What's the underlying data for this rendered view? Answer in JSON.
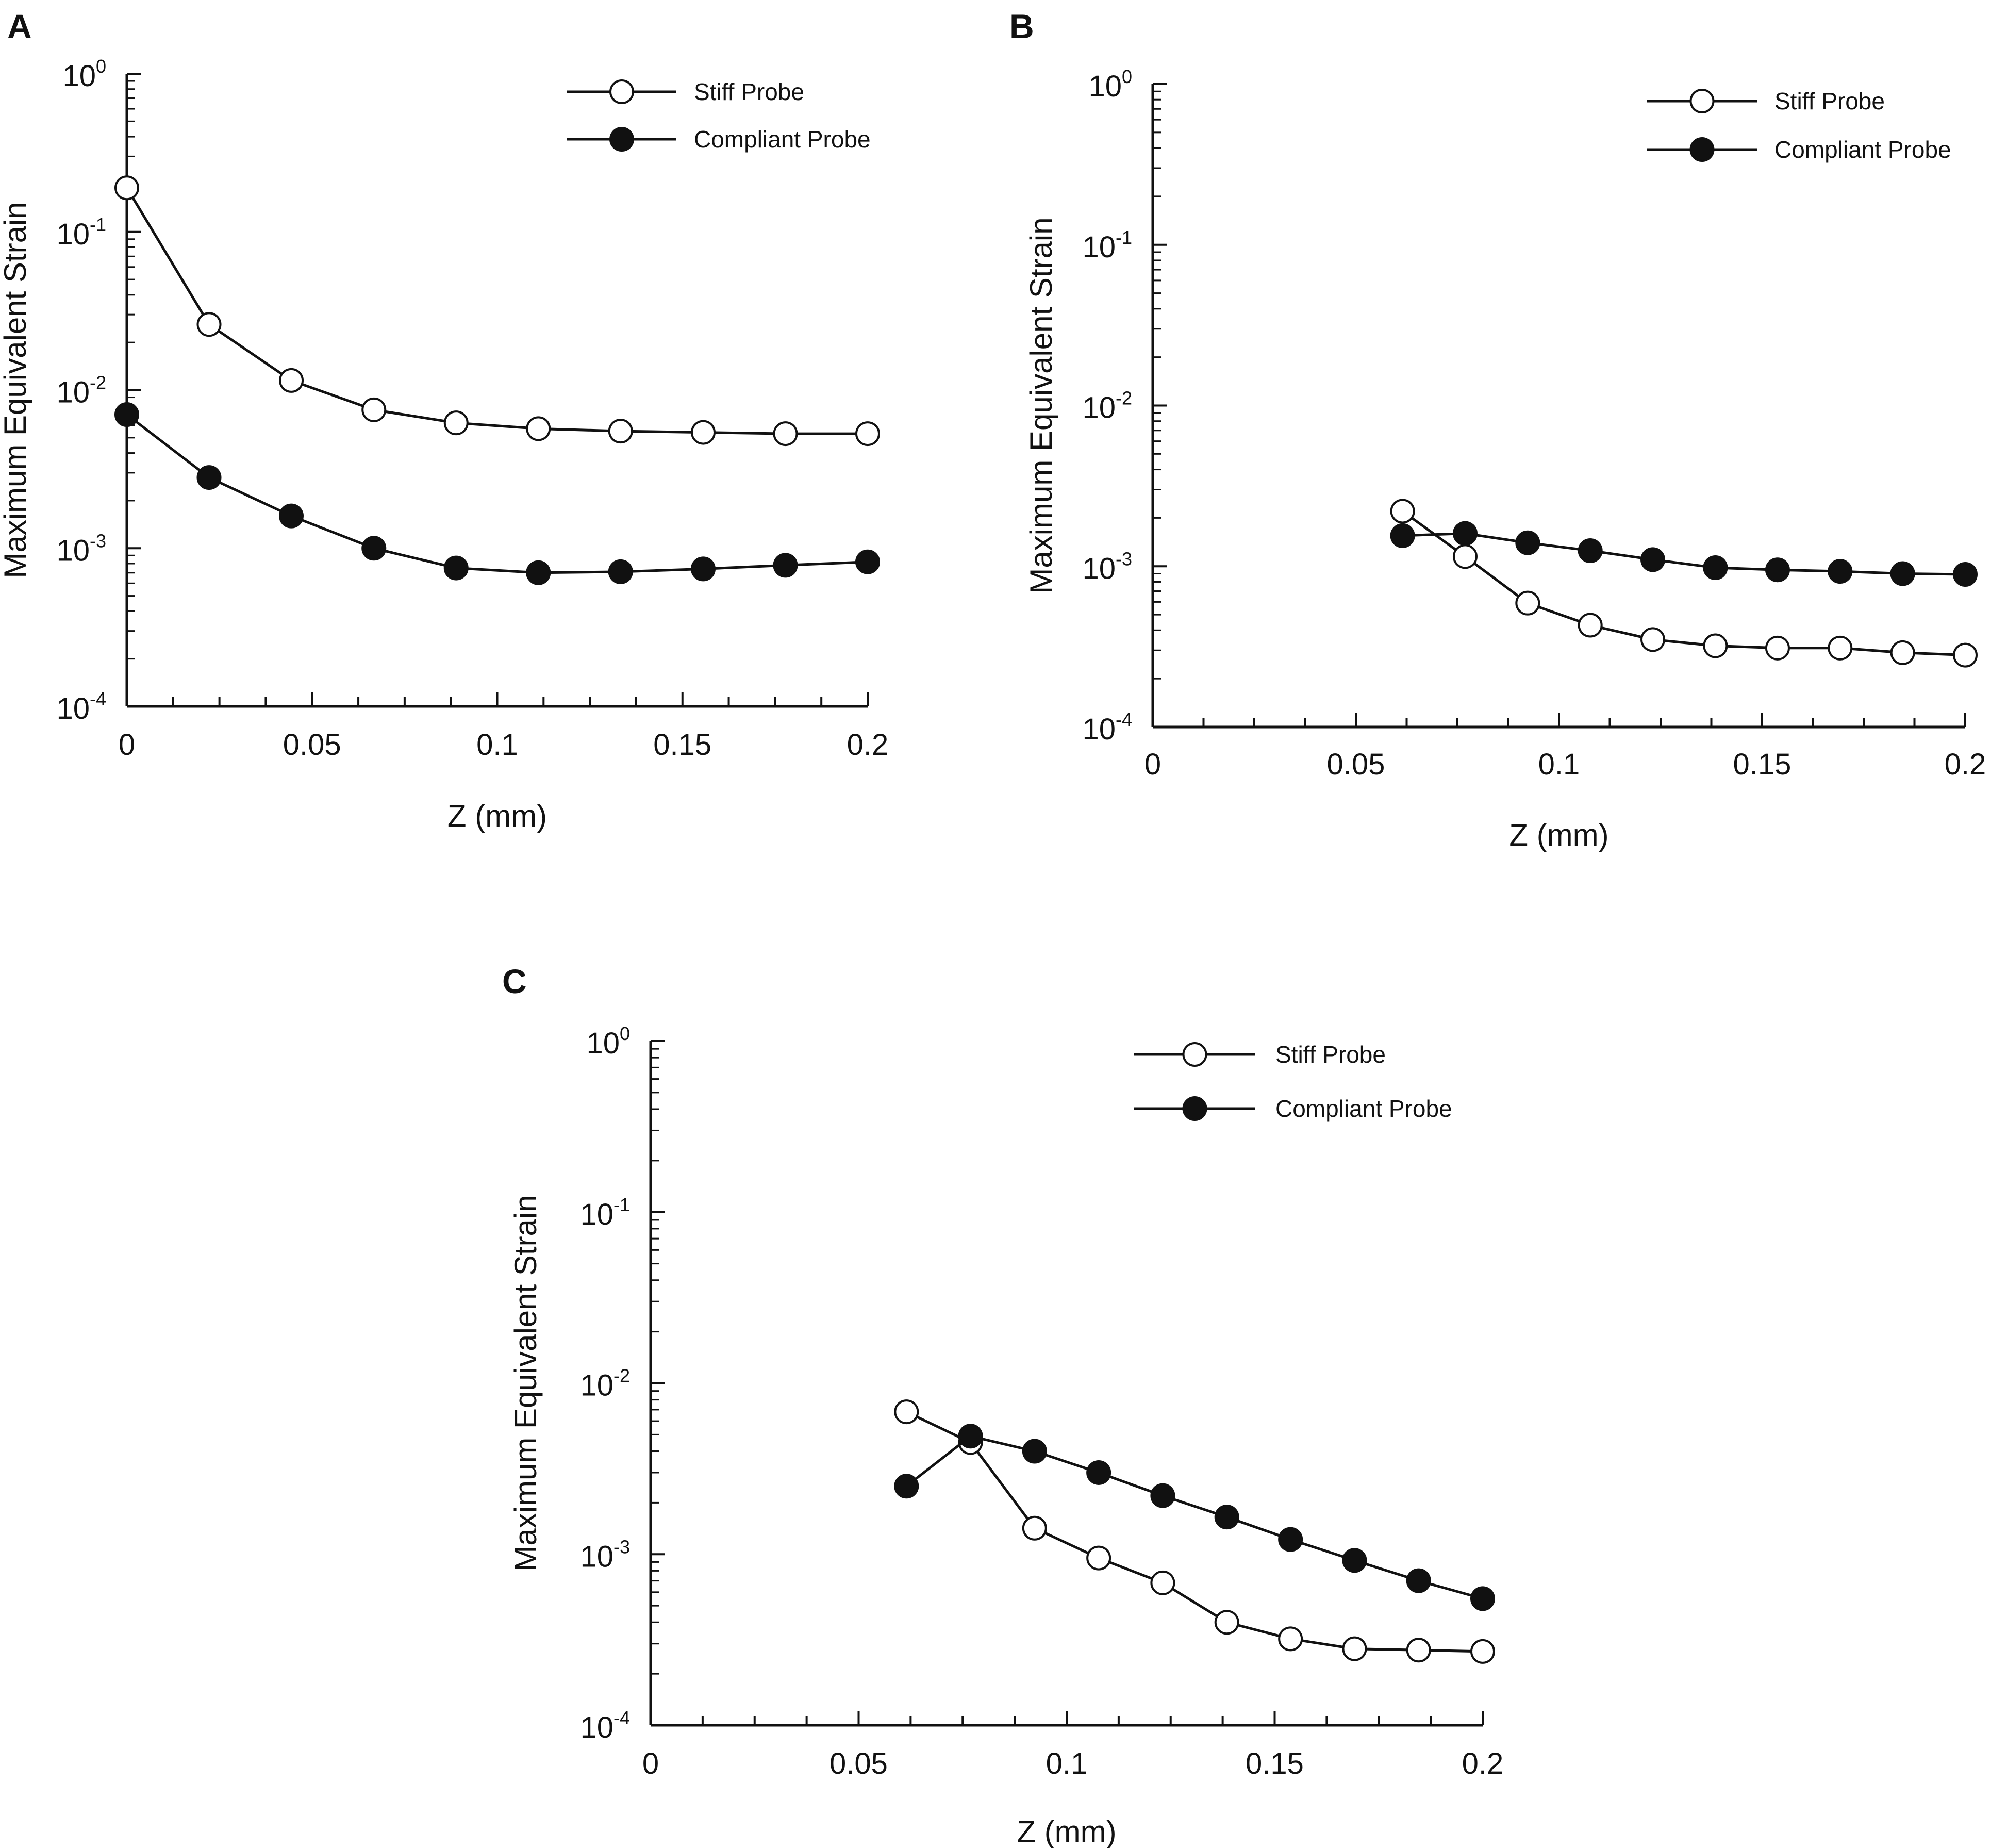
{
  "chart_data": [
    {
      "panel": "A",
      "type": "line",
      "xlabel": "Z (mm)",
      "ylabel": "Maximum Equivalent Strain",
      "yscale": "log",
      "xlim": [
        0,
        0.2
      ],
      "ylim": [
        0.0001,
        1
      ],
      "xticks": [
        "0",
        "0.05",
        "0.1",
        "0.15",
        "0.2"
      ],
      "yticks": [
        {
          "base": "10",
          "exp": "0"
        },
        {
          "base": "10",
          "exp": "-1"
        },
        {
          "base": "10",
          "exp": "-2"
        },
        {
          "base": "10",
          "exp": "-3"
        },
        {
          "base": "10",
          "exp": "-4"
        }
      ],
      "legend_position": "top-right",
      "series": [
        {
          "name": "Stiff Probe",
          "marker": "open-circle",
          "x": [
            0,
            0.0222,
            0.0444,
            0.0667,
            0.0889,
            0.1111,
            0.1333,
            0.1556,
            0.1778,
            0.2
          ],
          "y": [
            0.19,
            0.026,
            0.0115,
            0.0075,
            0.0062,
            0.0057,
            0.0055,
            0.0054,
            0.0053,
            0.0053
          ]
        },
        {
          "name": "Compliant Probe",
          "marker": "filled-circle",
          "x": [
            0,
            0.0222,
            0.0444,
            0.0667,
            0.0889,
            0.1111,
            0.1333,
            0.1556,
            0.1778,
            0.2
          ],
          "y": [
            0.007,
            0.0028,
            0.0016,
            0.001,
            0.00075,
            0.0007,
            0.00071,
            0.00074,
            0.00078,
            0.00082
          ]
        }
      ]
    },
    {
      "panel": "B",
      "type": "line",
      "xlabel": "Z (mm)",
      "ylabel": "Maximum Equivalent Strain",
      "yscale": "log",
      "xlim": [
        0,
        0.2
      ],
      "ylim": [
        0.0001,
        1
      ],
      "xticks": [
        "0",
        "0.05",
        "0.1",
        "0.15",
        "0.2"
      ],
      "yticks": [
        {
          "base": "10",
          "exp": "0"
        },
        {
          "base": "10",
          "exp": "-1"
        },
        {
          "base": "10",
          "exp": "-2"
        },
        {
          "base": "10",
          "exp": "-3"
        },
        {
          "base": "10",
          "exp": "-4"
        }
      ],
      "legend_position": "top-right",
      "series": [
        {
          "name": "Stiff Probe",
          "marker": "open-circle",
          "x": [
            0.0615,
            0.0769,
            0.0923,
            0.1077,
            0.1231,
            0.1385,
            0.1538,
            0.1692,
            0.1846,
            0.2
          ],
          "y": [
            0.0022,
            0.00115,
            0.00059,
            0.00043,
            0.00035,
            0.00032,
            0.00031,
            0.00031,
            0.00029,
            0.00028
          ]
        },
        {
          "name": "Compliant Probe",
          "marker": "filled-circle",
          "x": [
            0.0615,
            0.0769,
            0.0923,
            0.1077,
            0.1231,
            0.1385,
            0.1538,
            0.1692,
            0.1846,
            0.2
          ],
          "y": [
            0.00155,
            0.0016,
            0.0014,
            0.00125,
            0.0011,
            0.00098,
            0.00095,
            0.00093,
            0.0009,
            0.00089
          ]
        }
      ]
    },
    {
      "panel": "C",
      "type": "line",
      "xlabel": "Z (mm)",
      "ylabel": "Maximum Equivalent Strain",
      "yscale": "log",
      "xlim": [
        0,
        0.2
      ],
      "ylim": [
        0.0001,
        1
      ],
      "xticks": [
        "0",
        "0.05",
        "0.1",
        "0.15",
        "0.2"
      ],
      "yticks": [
        {
          "base": "10",
          "exp": "0"
        },
        {
          "base": "10",
          "exp": "-1"
        },
        {
          "base": "10",
          "exp": "-2"
        },
        {
          "base": "10",
          "exp": "-3"
        },
        {
          "base": "10",
          "exp": "-4"
        }
      ],
      "legend_position": "top-right",
      "series": [
        {
          "name": "Stiff Probe",
          "marker": "open-circle",
          "x": [
            0.0615,
            0.0769,
            0.0923,
            0.1077,
            0.1231,
            0.1385,
            0.1538,
            0.1692,
            0.1846,
            0.2
          ],
          "y": [
            0.0068,
            0.0045,
            0.00142,
            0.00095,
            0.00068,
            0.0004,
            0.00032,
            0.00028,
            0.000275,
            0.00027
          ]
        },
        {
          "name": "Compliant Probe",
          "marker": "filled-circle",
          "x": [
            0.0615,
            0.0769,
            0.0923,
            0.1077,
            0.1231,
            0.1385,
            0.1538,
            0.1692,
            0.1846,
            0.2
          ],
          "y": [
            0.0025,
            0.0049,
            0.004,
            0.003,
            0.0022,
            0.00165,
            0.00122,
            0.00092,
            0.0007,
            0.00055
          ]
        }
      ]
    }
  ]
}
